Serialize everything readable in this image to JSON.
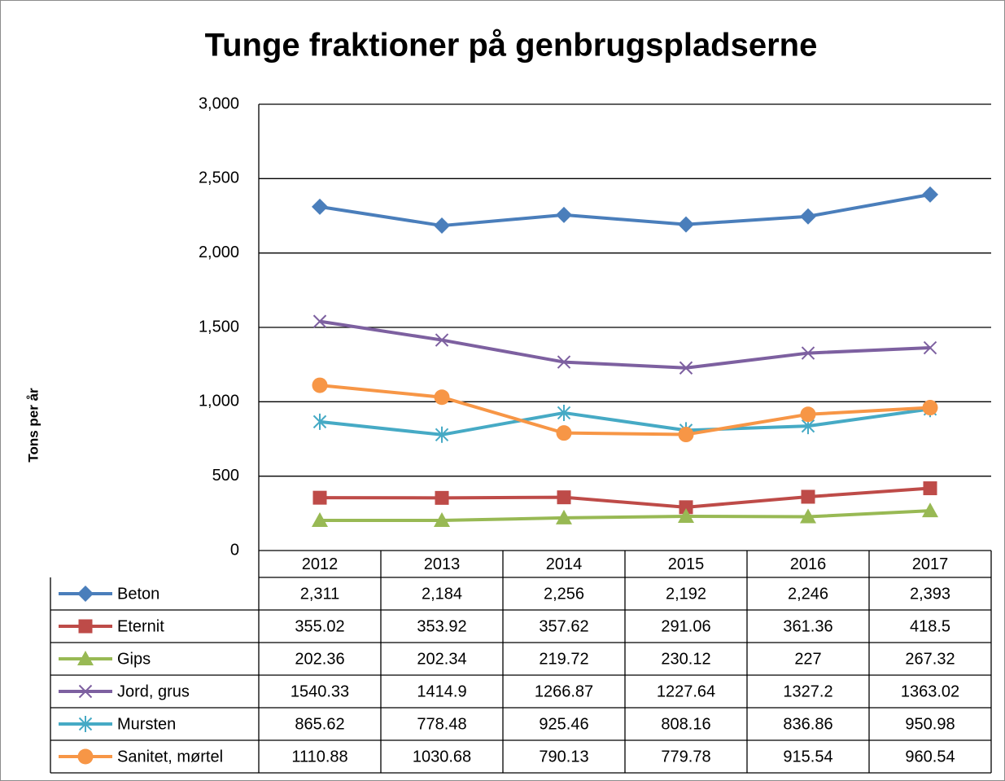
{
  "chart_data": {
    "type": "line",
    "title": "Tunge fraktioner på genbrugspladserne",
    "y_label": "Tons per år",
    "categories": [
      "2012",
      "2013",
      "2014",
      "2015",
      "2016",
      "2017"
    ],
    "ylim": [
      0,
      3000
    ],
    "yticks": [
      0,
      500,
      {
        "value": 1000,
        "label": "1,000"
      },
      {
        "value": 1500,
        "label": "1,500"
      },
      {
        "value": 2000,
        "label": "2,000"
      },
      {
        "value": 2500,
        "label": "2,500"
      },
      {
        "value": 3000,
        "label": "3,000"
      }
    ],
    "grid": true,
    "data_table": true,
    "series": [
      {
        "name": "Beton",
        "color": "#4a7ebb",
        "marker": "diamond",
        "values": [
          2311,
          2184,
          2256,
          2192,
          2246,
          2393
        ],
        "value_labels": [
          "2,311",
          "2,184",
          "2,256",
          "2,192",
          "2,246",
          "2,393"
        ]
      },
      {
        "name": "Eternit",
        "color": "#be4b48",
        "marker": "square",
        "values": [
          355.02,
          353.92,
          357.62,
          291.06,
          361.36,
          418.5
        ]
      },
      {
        "name": "Gips",
        "color": "#98b954",
        "marker": "triangle",
        "values": [
          202.36,
          202.34,
          219.72,
          230.12,
          227,
          267.32
        ]
      },
      {
        "name": "Jord, grus",
        "color": "#7d60a0",
        "marker": "x",
        "values": [
          1540.33,
          1414.9,
          1266.87,
          1227.64,
          1327.2,
          1363.02
        ]
      },
      {
        "name": "Mursten",
        "color": "#46aac5",
        "marker": "asterisk",
        "values": [
          865.62,
          778.48,
          925.46,
          808.16,
          836.86,
          950.98
        ]
      },
      {
        "name": "Sanitet, mørtel",
        "color": "#f79646",
        "marker": "circle",
        "values": [
          1110.88,
          1030.68,
          790.13,
          779.78,
          915.54,
          960.54
        ]
      }
    ]
  }
}
